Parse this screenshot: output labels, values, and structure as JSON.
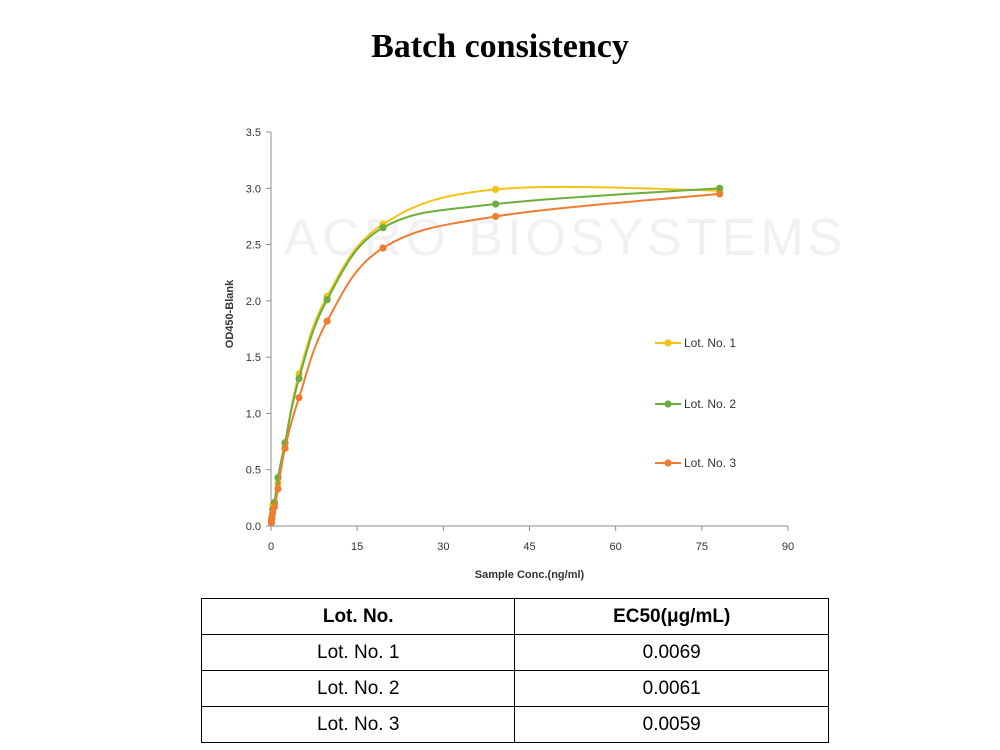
{
  "page_title": "Batch consistency",
  "watermark": "ACRO BIOSYSTEMS",
  "chart_data": {
    "type": "line",
    "xlabel": "Sample Conc.(ng/ml)",
    "ylabel": "OD450-Blank",
    "xlim": [
      0,
      90
    ],
    "ylim": [
      0,
      3.5
    ],
    "xticks": [
      0,
      15,
      30,
      45,
      60,
      75,
      90
    ],
    "yticks": [
      "0.0",
      "0.5",
      "1.0",
      "1.5",
      "2.0",
      "2.5",
      "3.0",
      "3.5"
    ],
    "grid": false,
    "legend_position": "right",
    "series": [
      {
        "name": "Lot. No. 1",
        "color": "#F2C417",
        "points": [
          [
            0.076,
            0.05
          ],
          [
            0.152,
            0.09
          ],
          [
            0.305,
            0.19
          ],
          [
            0.61,
            0.2
          ],
          [
            1.22,
            0.38
          ],
          [
            2.44,
            0.73
          ],
          [
            4.88,
            1.35
          ],
          [
            9.77,
            2.04
          ],
          [
            19.5,
            2.68
          ],
          [
            39.1,
            2.99
          ],
          [
            78.1,
            2.98
          ]
        ]
      },
      {
        "name": "Lot. No. 2",
        "color": "#6BAE3D",
        "points": [
          [
            0.076,
            0.04
          ],
          [
            0.152,
            0.08
          ],
          [
            0.305,
            0.15
          ],
          [
            0.61,
            0.21
          ],
          [
            1.22,
            0.43
          ],
          [
            2.44,
            0.74
          ],
          [
            4.88,
            1.31
          ],
          [
            9.77,
            2.01
          ],
          [
            19.5,
            2.65
          ],
          [
            39.1,
            2.86
          ],
          [
            78.1,
            3.0
          ]
        ]
      },
      {
        "name": "Lot. No. 3",
        "color": "#EE7D31",
        "points": [
          [
            0.076,
            0.03
          ],
          [
            0.152,
            0.07
          ],
          [
            0.305,
            0.12
          ],
          [
            0.61,
            0.17
          ],
          [
            1.22,
            0.33
          ],
          [
            2.44,
            0.69
          ],
          [
            4.88,
            1.14
          ],
          [
            9.77,
            1.82
          ],
          [
            19.5,
            2.47
          ],
          [
            39.1,
            2.75
          ],
          [
            78.1,
            2.95
          ]
        ]
      }
    ]
  },
  "table": {
    "headers": [
      "Lot. No.",
      "EC50(μg/mL)"
    ],
    "rows": [
      [
        "Lot. No. 1",
        "0.0069"
      ],
      [
        "Lot. No. 2",
        "0.0061"
      ],
      [
        "Lot. No. 3",
        "0.0059"
      ]
    ]
  }
}
